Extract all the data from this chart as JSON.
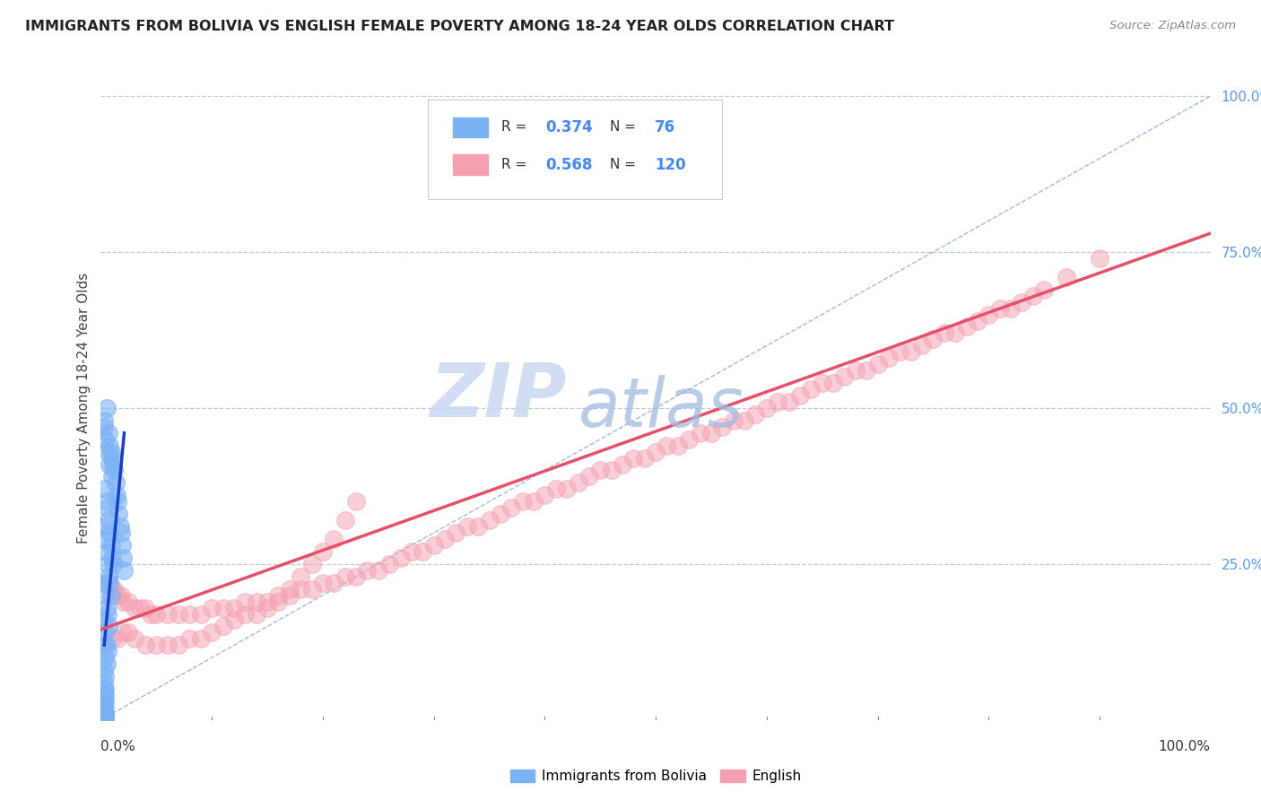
{
  "title": "IMMIGRANTS FROM BOLIVIA VS ENGLISH FEMALE POVERTY AMONG 18-24 YEAR OLDS CORRELATION CHART",
  "source": "Source: ZipAtlas.com",
  "ylabel": "Female Poverty Among 18-24 Year Olds",
  "x_range": [
    0,
    1
  ],
  "y_range": [
    0,
    1
  ],
  "bolivia_R": 0.374,
  "bolivia_N": 76,
  "english_R": 0.568,
  "english_N": 120,
  "bolivia_color": "#7ab3f5",
  "english_color": "#f5a0b0",
  "bolivia_line_color": "#1a3ecc",
  "english_line_color": "#e8506a",
  "diagonal_color": "#9ab8e8",
  "tick_color": "#5599ff",
  "watermark_ZIP": "ZIP",
  "watermark_atlas": "atlas",
  "watermark_color_ZIP": "#c5d8f0",
  "watermark_color_atlas": "#a8c8e8",
  "bolivia_x": [
    0.003,
    0.005,
    0.007,
    0.008,
    0.009,
    0.01,
    0.011,
    0.012,
    0.013,
    0.014,
    0.015,
    0.016,
    0.017,
    0.018,
    0.019,
    0.02,
    0.021,
    0.003,
    0.004,
    0.006,
    0.008,
    0.01,
    0.004,
    0.005,
    0.006,
    0.007,
    0.008,
    0.009,
    0.01,
    0.011,
    0.003,
    0.004,
    0.005,
    0.006,
    0.007,
    0.008,
    0.009,
    0.003,
    0.004,
    0.005,
    0.006,
    0.007,
    0.003,
    0.004,
    0.005,
    0.006,
    0.003,
    0.004,
    0.005,
    0.003,
    0.004,
    0.003,
    0.004,
    0.003,
    0.004,
    0.003,
    0.004,
    0.003,
    0.004,
    0.003,
    0.004,
    0.003,
    0.004,
    0.003,
    0.004,
    0.003,
    0.004,
    0.003,
    0.004,
    0.003,
    0.004,
    0.003,
    0.004,
    0.003,
    0.004,
    0.003
  ],
  "bolivia_y": [
    0.48,
    0.5,
    0.46,
    0.44,
    0.43,
    0.42,
    0.41,
    0.4,
    0.38,
    0.36,
    0.35,
    0.33,
    0.31,
    0.3,
    0.28,
    0.26,
    0.24,
    0.47,
    0.45,
    0.43,
    0.41,
    0.39,
    0.37,
    0.35,
    0.34,
    0.32,
    0.3,
    0.28,
    0.26,
    0.25,
    0.31,
    0.29,
    0.27,
    0.25,
    0.23,
    0.22,
    0.2,
    0.22,
    0.2,
    0.18,
    0.17,
    0.15,
    0.16,
    0.14,
    0.12,
    0.11,
    0.12,
    0.1,
    0.09,
    0.08,
    0.07,
    0.06,
    0.05,
    0.05,
    0.04,
    0.04,
    0.03,
    0.03,
    0.02,
    0.02,
    0.01,
    0.01,
    0.008,
    0.006,
    0.005,
    0.004,
    0.003,
    0.003,
    0.002,
    0.002,
    0.001,
    0.001,
    0.001,
    0.001,
    0.001,
    0.001
  ],
  "english_x": [
    0.005,
    0.008,
    0.01,
    0.012,
    0.015,
    0.018,
    0.02,
    0.025,
    0.03,
    0.035,
    0.04,
    0.045,
    0.05,
    0.06,
    0.07,
    0.08,
    0.09,
    0.1,
    0.11,
    0.12,
    0.13,
    0.14,
    0.15,
    0.16,
    0.17,
    0.18,
    0.19,
    0.2,
    0.21,
    0.22,
    0.23,
    0.24,
    0.25,
    0.26,
    0.27,
    0.28,
    0.29,
    0.3,
    0.31,
    0.32,
    0.33,
    0.34,
    0.35,
    0.36,
    0.37,
    0.38,
    0.39,
    0.4,
    0.41,
    0.42,
    0.43,
    0.44,
    0.45,
    0.46,
    0.47,
    0.48,
    0.49,
    0.5,
    0.51,
    0.52,
    0.53,
    0.54,
    0.55,
    0.56,
    0.57,
    0.58,
    0.59,
    0.6,
    0.61,
    0.62,
    0.63,
    0.64,
    0.65,
    0.66,
    0.67,
    0.68,
    0.69,
    0.7,
    0.71,
    0.72,
    0.73,
    0.74,
    0.75,
    0.76,
    0.77,
    0.78,
    0.79,
    0.8,
    0.81,
    0.82,
    0.83,
    0.84,
    0.85,
    0.87,
    0.9,
    0.01,
    0.015,
    0.02,
    0.025,
    0.03,
    0.04,
    0.05,
    0.06,
    0.07,
    0.08,
    0.09,
    0.1,
    0.11,
    0.12,
    0.13,
    0.14,
    0.15,
    0.16,
    0.17,
    0.18,
    0.19,
    0.2,
    0.21,
    0.22,
    0.23
  ],
  "english_y": [
    0.22,
    0.22,
    0.21,
    0.21,
    0.2,
    0.2,
    0.19,
    0.19,
    0.18,
    0.18,
    0.18,
    0.17,
    0.17,
    0.17,
    0.17,
    0.17,
    0.17,
    0.18,
    0.18,
    0.18,
    0.19,
    0.19,
    0.19,
    0.2,
    0.2,
    0.21,
    0.21,
    0.22,
    0.22,
    0.23,
    0.23,
    0.24,
    0.24,
    0.25,
    0.26,
    0.27,
    0.27,
    0.28,
    0.29,
    0.3,
    0.31,
    0.31,
    0.32,
    0.33,
    0.34,
    0.35,
    0.35,
    0.36,
    0.37,
    0.37,
    0.38,
    0.39,
    0.4,
    0.4,
    0.41,
    0.42,
    0.42,
    0.43,
    0.44,
    0.44,
    0.45,
    0.46,
    0.46,
    0.47,
    0.48,
    0.48,
    0.49,
    0.5,
    0.51,
    0.51,
    0.52,
    0.53,
    0.54,
    0.54,
    0.55,
    0.56,
    0.56,
    0.57,
    0.58,
    0.59,
    0.59,
    0.6,
    0.61,
    0.62,
    0.62,
    0.63,
    0.64,
    0.65,
    0.66,
    0.66,
    0.67,
    0.68,
    0.69,
    0.71,
    0.74,
    0.13,
    0.13,
    0.14,
    0.14,
    0.13,
    0.12,
    0.12,
    0.12,
    0.12,
    0.13,
    0.13,
    0.14,
    0.15,
    0.16,
    0.17,
    0.17,
    0.18,
    0.19,
    0.21,
    0.23,
    0.25,
    0.27,
    0.29,
    0.32,
    0.35
  ],
  "bolivia_line_x": [
    0.003,
    0.021
  ],
  "bolivia_line_y": [
    0.12,
    0.46
  ],
  "english_line_x": [
    0.0,
    1.0
  ],
  "english_line_y": [
    0.145,
    0.78
  ]
}
